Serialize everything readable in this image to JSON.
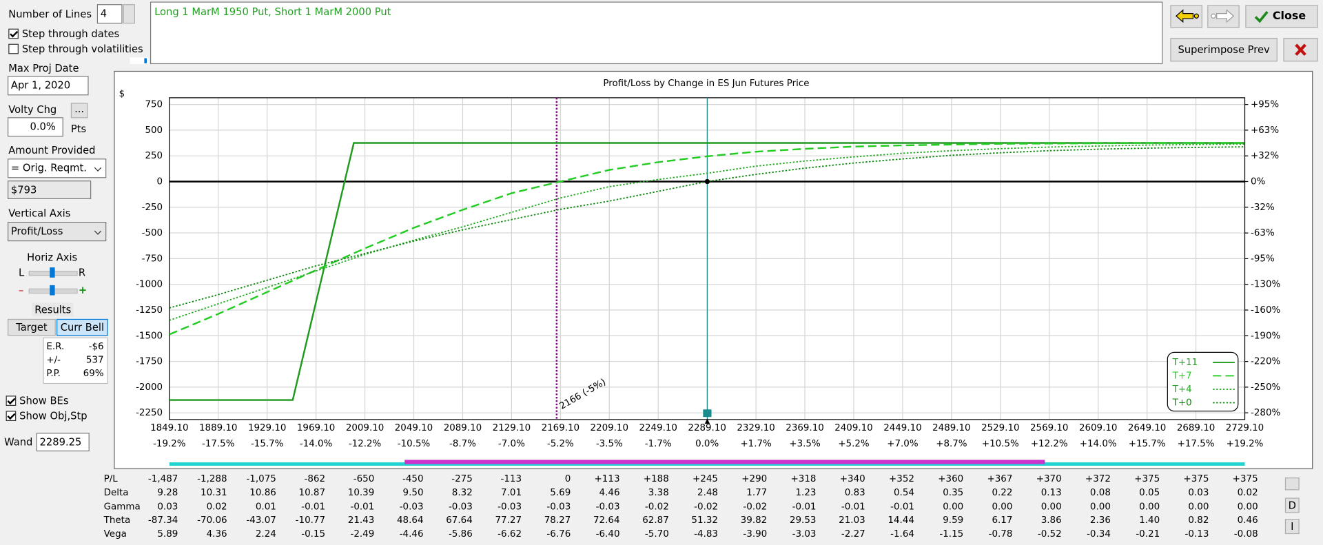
{
  "controls": {
    "number_of_lines": {
      "label": "Number of Lines",
      "value": "4"
    },
    "step_dates": {
      "label": "Step through dates",
      "checked": true
    },
    "step_vols": {
      "label": "Step through volatilities",
      "checked": false
    },
    "max_proj_date": {
      "label": "Max Proj Date",
      "value": "Apr 1, 2020"
    },
    "volty_chg": {
      "label": "Volty Chg",
      "button": "...",
      "value": "0.0%",
      "unit": "Pts"
    },
    "amount_provided": {
      "label": "Amount Provided",
      "value": "= Orig. Reqmt.",
      "amount": "$793"
    },
    "vertical_axis": {
      "label": "Vertical Axis",
      "value": "Profit/Loss"
    },
    "horiz_axis": {
      "label": "Horiz Axis",
      "left": "L",
      "right": "R",
      "minus": "–",
      "plus": "+"
    },
    "results": {
      "label": "Results",
      "tabs": [
        "Target",
        "Curr Bell"
      ],
      "stats": [
        [
          "E.R.",
          "-$6"
        ],
        [
          "+/-",
          "537"
        ],
        [
          "P.P.",
          "69%"
        ]
      ]
    },
    "show_bes": {
      "label": "Show BEs",
      "checked": true
    },
    "show_obj": {
      "label": "Show Obj,Stp",
      "checked": true
    },
    "wand": {
      "label": "Wand"
    }
  },
  "header": {
    "strategy": "Long 1 MarM 1950 Put, Short 1 MarM 2000 Put",
    "close": "Close",
    "superimpose": "Superimpose Prev"
  },
  "chart_data": {
    "type": "line",
    "title": "Profit/Loss by Change in ES Jun Futures Price",
    "y_unit": "$",
    "xlim": [
      1849.1,
      2729.1
    ],
    "xticks": [
      {
        "value": 1849.1,
        "label": "1849.10"
      },
      {
        "value": 1889.1,
        "label": "1889.10"
      },
      {
        "value": 1929.1,
        "label": "1929.10"
      },
      {
        "value": 1969.1,
        "label": "1969.10"
      },
      {
        "value": 2009.1,
        "label": "2009.10"
      },
      {
        "value": 2049.1,
        "label": "2049.10"
      },
      {
        "value": 2089.1,
        "label": "2089.10"
      },
      {
        "value": 2129.1,
        "label": "2129.10"
      },
      {
        "value": 2169.1,
        "label": "2169.10"
      },
      {
        "value": 2209.1,
        "label": "2209.10"
      },
      {
        "value": 2249.1,
        "label": "2249.10"
      },
      {
        "value": 2289.1,
        "label": "2289.10"
      },
      {
        "value": 2329.1,
        "label": "2329.10"
      },
      {
        "value": 2369.1,
        "label": "2369.10"
      },
      {
        "value": 2409.1,
        "label": "2409.10"
      },
      {
        "value": 2449.1,
        "label": "2449.10"
      },
      {
        "value": 2489.1,
        "label": "2489.10"
      },
      {
        "value": 2529.1,
        "label": "2529.10"
      },
      {
        "value": 2569.1,
        "label": "2569.10"
      },
      {
        "value": 2609.1,
        "label": "2609.10"
      },
      {
        "value": 2649.1,
        "label": "2649.10"
      },
      {
        "value": 2689.1,
        "label": "2689.10"
      },
      {
        "value": 2729.1,
        "label": "2729.10"
      }
    ],
    "x_pct_labels": [
      "-19.2%",
      "-17.5%",
      "-15.7%",
      "-14.0%",
      "-12.2%",
      "-10.5%",
      "-8.7%",
      "-7.0%",
      "-5.2%",
      "-3.5%",
      "-1.7%",
      "0.0%",
      "+1.7%",
      "+3.5%",
      "+5.2%",
      "+7.0%",
      "+8.7%",
      "+10.5%",
      "+12.2%",
      "+14.0%",
      "+15.7%",
      "+17.5%",
      "+19.2%"
    ],
    "ylim": [
      -2315,
      815
    ],
    "yticks": [
      750,
      500,
      250,
      0,
      -250,
      -500,
      -750,
      -1000,
      -1250,
      -1500,
      -1750,
      -2000,
      -2250
    ],
    "y2lim": [
      -291.9,
      102.8
    ],
    "y2ticks": [
      {
        "value": 94.6,
        "label": "+95%"
      },
      {
        "value": 63.1,
        "label": "+63%"
      },
      {
        "value": 31.5,
        "label": "+32%"
      },
      {
        "value": 0,
        "label": "0%"
      },
      {
        "value": -31.5,
        "label": "-32%"
      },
      {
        "value": -63.1,
        "label": "-63%"
      },
      {
        "value": -94.6,
        "label": "-95%"
      },
      {
        "value": -126.1,
        "label": "-130%"
      },
      {
        "value": -157.6,
        "label": "-160%"
      },
      {
        "value": -189.2,
        "label": "-190%"
      },
      {
        "value": -220.7,
        "label": "-220%"
      },
      {
        "value": -252.2,
        "label": "-250%"
      },
      {
        "value": -283.7,
        "label": "-280%"
      }
    ],
    "grid": true,
    "legend": "lower-right",
    "series": [
      {
        "name": "T+11",
        "color": "#1e9a1e",
        "style": "solid",
        "x": [
          1849.1,
          1950,
          2000,
          2729.1
        ],
        "values": [
          -2125,
          -2125,
          375,
          375
        ]
      },
      {
        "name": "T+7",
        "color": "#22cc22",
        "style": "dashed",
        "x": [
          1849.1,
          1889.1,
          1929.1,
          1969.1,
          2009.1,
          2049.1,
          2089.1,
          2129.1,
          2169.1,
          2209.1,
          2249.1,
          2289.1,
          2329.1,
          2369.1,
          2409.1,
          2449.1,
          2489.1,
          2529.1,
          2569.1,
          2609.1,
          2649.1,
          2689.1,
          2729.1
        ],
        "values": [
          -1487,
          -1288,
          -1075,
          -862,
          -650,
          -450,
          -275,
          -113,
          0,
          113,
          188,
          245,
          290,
          318,
          340,
          352,
          360,
          367,
          370,
          372,
          375,
          375,
          375
        ]
      },
      {
        "name": "T+4",
        "color": "#22aa22",
        "style": "dotted",
        "x": [
          1849.1,
          1889.1,
          1929.1,
          1969.1,
          2009.1,
          2049.1,
          2089.1,
          2129.1,
          2169.1,
          2209.1,
          2249.1,
          2289.1,
          2329.1,
          2369.1,
          2409.1,
          2449.1,
          2489.1,
          2529.1,
          2569.1,
          2609.1,
          2649.1,
          2689.1,
          2729.1
        ],
        "values": [
          -1350,
          -1190,
          -1030,
          -870,
          -710,
          -570,
          -440,
          -300,
          -160,
          -50,
          20,
          80,
          150,
          200,
          240,
          275,
          300,
          320,
          335,
          345,
          355,
          360,
          365
        ]
      },
      {
        "name": "T+0",
        "color": "#118811",
        "style": "dotted",
        "x": [
          1849.1,
          1889.1,
          1929.1,
          1969.1,
          2009.1,
          2049.1,
          2089.1,
          2129.1,
          2169.1,
          2209.1,
          2249.1,
          2289.1,
          2329.1,
          2369.1,
          2409.1,
          2449.1,
          2489.1,
          2529.1,
          2569.1,
          2609.1,
          2649.1,
          2689.1,
          2729.1
        ],
        "values": [
          -1230,
          -1100,
          -960,
          -820,
          -700,
          -580,
          -470,
          -370,
          -270,
          -190,
          -95,
          0,
          70,
          130,
          180,
          220,
          255,
          280,
          300,
          315,
          325,
          332,
          338
        ]
      }
    ],
    "annotation": {
      "x": 2166,
      "label": "2166 (-5%)",
      "color": "#800080"
    },
    "current_price": 2289.25,
    "current_color": "#1a8c8c"
  },
  "greeks_table": {
    "rows": [
      {
        "label": "P/L",
        "values": [
          "-1,487",
          "-1,288",
          "-1,075",
          "-862",
          "-650",
          "-450",
          "-275",
          "-113",
          "0",
          "+113",
          "+188",
          "+245",
          "+290",
          "+318",
          "+340",
          "+352",
          "+360",
          "+367",
          "+370",
          "+372",
          "+375",
          "+375",
          "+375"
        ]
      },
      {
        "label": "Delta",
        "values": [
          "9.28",
          "10.31",
          "10.86",
          "10.87",
          "10.39",
          "9.50",
          "8.32",
          "7.01",
          "5.69",
          "4.46",
          "3.38",
          "2.48",
          "1.77",
          "1.23",
          "0.83",
          "0.54",
          "0.35",
          "0.22",
          "0.13",
          "0.08",
          "0.05",
          "0.03",
          "0.02"
        ]
      },
      {
        "label": "Gamma",
        "values": [
          "0.03",
          "0.02",
          "0.01",
          "-0.01",
          "-0.01",
          "-0.03",
          "-0.03",
          "-0.03",
          "-0.03",
          "-0.03",
          "-0.02",
          "-0.02",
          "-0.02",
          "-0.01",
          "-0.01",
          "-0.01",
          "0.00",
          "0.00",
          "0.00",
          "0.00",
          "0.00",
          "0.00",
          "0.00"
        ]
      },
      {
        "label": "Theta",
        "values": [
          "-87.34",
          "-70.06",
          "-43.07",
          "-10.77",
          "21.43",
          "48.64",
          "67.64",
          "77.27",
          "78.27",
          "72.64",
          "62.87",
          "51.32",
          "39.82",
          "29.53",
          "21.03",
          "14.44",
          "9.59",
          "6.17",
          "3.86",
          "2.36",
          "1.40",
          "0.82",
          "0.46"
        ]
      },
      {
        "label": "Vega",
        "values": [
          "5.89",
          "4.36",
          "2.24",
          "-0.15",
          "-2.49",
          "-4.46",
          "-5.86",
          "-6.62",
          "-6.76",
          "-6.40",
          "-5.70",
          "-4.83",
          "-3.90",
          "-3.03",
          "-2.27",
          "-1.64",
          "-1.15",
          "-0.78",
          "-0.52",
          "-0.34",
          "-0.21",
          "-0.13",
          "-0.08"
        ]
      }
    ],
    "side_buttons": [
      "D",
      "I"
    ]
  }
}
